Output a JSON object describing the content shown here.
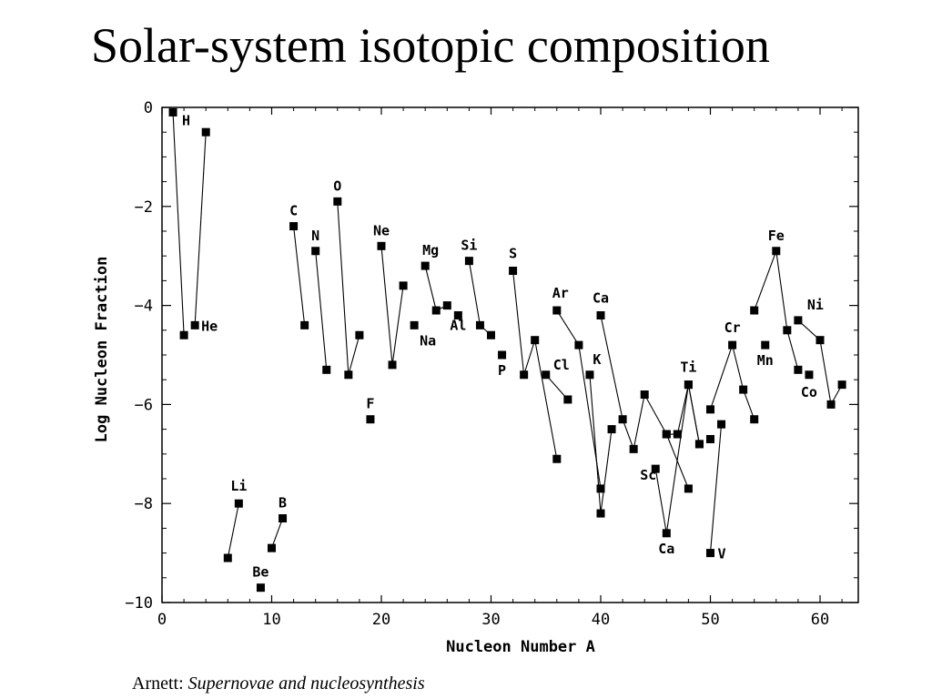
{
  "slide": {
    "title": "Solar-system isotopic composition",
    "caption_prefix": "Arnett: ",
    "caption_italic": "Supernovae and nucleosynthesis"
  },
  "chart_data": {
    "type": "scatter",
    "xlabel": "Nucleon Number A",
    "ylabel": "Log Nucleon Fraction",
    "xlim": [
      0,
      64
    ],
    "ylim": [
      -10,
      0
    ],
    "x_ticks": [
      0,
      10,
      20,
      30,
      40,
      50,
      60
    ],
    "y_ticks": [
      0,
      -2,
      -4,
      -6,
      -8,
      -10
    ],
    "x_tick_labels": [
      "0",
      "10",
      "20",
      "30",
      "40",
      "50",
      "60"
    ],
    "y_tick_labels": [
      "0",
      "−2",
      "−4",
      "−6",
      "−8",
      "−10"
    ],
    "grid": false,
    "marker": "square",
    "series": [
      {
        "points": [
          [
            1,
            -0.1
          ],
          [
            2,
            -4.6
          ]
        ]
      },
      {
        "points": [
          [
            3,
            -4.4
          ],
          [
            4,
            -0.5
          ]
        ]
      },
      {
        "points": [
          [
            6,
            -9.1
          ],
          [
            7,
            -8.0
          ]
        ]
      },
      {
        "points": [
          [
            9,
            -9.7
          ]
        ]
      },
      {
        "points": [
          [
            10,
            -8.9
          ],
          [
            11,
            -8.3
          ]
        ]
      },
      {
        "points": [
          [
            12,
            -2.4
          ],
          [
            13,
            -4.4
          ]
        ]
      },
      {
        "points": [
          [
            14,
            -2.9
          ],
          [
            15,
            -5.3
          ]
        ]
      },
      {
        "points": [
          [
            16,
            -1.9
          ],
          [
            17,
            -5.4
          ],
          [
            18,
            -4.6
          ]
        ]
      },
      {
        "points": [
          [
            19,
            -6.3
          ]
        ]
      },
      {
        "points": [
          [
            20,
            -2.8
          ],
          [
            21,
            -5.2
          ],
          [
            22,
            -3.6
          ]
        ]
      },
      {
        "points": [
          [
            23,
            -4.4
          ]
        ]
      },
      {
        "points": [
          [
            24,
            -3.2
          ],
          [
            25,
            -4.1
          ],
          [
            26,
            -4.0
          ]
        ]
      },
      {
        "points": [
          [
            27,
            -4.2
          ]
        ]
      },
      {
        "points": [
          [
            28,
            -3.1
          ],
          [
            29,
            -4.4
          ],
          [
            30,
            -4.6
          ]
        ]
      },
      {
        "points": [
          [
            31,
            -5.0
          ]
        ]
      },
      {
        "points": [
          [
            32,
            -3.3
          ],
          [
            33,
            -5.4
          ],
          [
            34,
            -4.7
          ],
          [
            36,
            -7.1
          ]
        ]
      },
      {
        "points": [
          [
            35,
            -5.4
          ],
          [
            37,
            -5.9
          ]
        ]
      },
      {
        "points": [
          [
            36,
            -4.1
          ],
          [
            38,
            -4.8
          ],
          [
            40,
            -7.7
          ]
        ]
      },
      {
        "points": [
          [
            39,
            -5.4
          ],
          [
            40,
            -8.2
          ],
          [
            41,
            -6.5
          ]
        ]
      },
      {
        "points": [
          [
            40,
            -4.2
          ],
          [
            42,
            -6.3
          ],
          [
            43,
            -6.9
          ],
          [
            44,
            -5.8
          ],
          [
            46,
            -6.6
          ],
          [
            48,
            -7.7
          ]
        ]
      },
      {
        "points": [
          [
            45,
            -7.3
          ],
          [
            46,
            -8.6
          ],
          [
            48,
            -5.6
          ],
          [
            49,
            -6.8
          ]
        ]
      },
      {
        "points": [
          [
            46,
            -6.6
          ],
          [
            47,
            -6.6
          ],
          [
            48,
            -5.6
          ],
          [
            49,
            -6.8
          ]
        ]
      },
      {
        "points": [
          [
            50,
            -9.0
          ],
          [
            51,
            -6.4
          ]
        ]
      },
      {
        "points": [
          [
            50,
            -6.1
          ],
          [
            52,
            -4.8
          ],
          [
            53,
            -5.7
          ],
          [
            54,
            -6.3
          ]
        ]
      },
      {
        "points": [
          [
            50,
            -6.7
          ]
        ]
      },
      {
        "points": [
          [
            54,
            -4.1
          ],
          [
            56,
            -2.9
          ],
          [
            57,
            -4.5
          ],
          [
            58,
            -5.3
          ]
        ]
      },
      {
        "points": [
          [
            55,
            -4.8
          ]
        ]
      },
      {
        "points": [
          [
            58,
            -4.3
          ],
          [
            60,
            -4.7
          ],
          [
            61,
            -6.0
          ],
          [
            62,
            -5.6
          ]
        ]
      },
      {
        "points": [
          [
            59,
            -5.4
          ]
        ]
      }
    ],
    "labels": [
      {
        "text": "H",
        "x": 1,
        "y": -0.1
      },
      {
        "text": "He",
        "x": 3,
        "y": -4.4
      },
      {
        "text": "Li",
        "x": 7,
        "y": -8.0
      },
      {
        "text": "Be",
        "x": 9,
        "y": -9.7
      },
      {
        "text": "B",
        "x": 11,
        "y": -8.3
      },
      {
        "text": "C",
        "x": 12,
        "y": -2.4
      },
      {
        "text": "N",
        "x": 14,
        "y": -2.9
      },
      {
        "text": "O",
        "x": 16,
        "y": -1.9
      },
      {
        "text": "F",
        "x": 19,
        "y": -6.3
      },
      {
        "text": "Ne",
        "x": 20,
        "y": -2.8
      },
      {
        "text": "Na",
        "x": 23,
        "y": -4.4
      },
      {
        "text": "Mg",
        "x": 24,
        "y": -3.2
      },
      {
        "text": "Al",
        "x": 27,
        "y": -4.2
      },
      {
        "text": "Si",
        "x": 28,
        "y": -3.1
      },
      {
        "text": "P",
        "x": 31,
        "y": -5.0
      },
      {
        "text": "S",
        "x": 32,
        "y": -3.3
      },
      {
        "text": "Cl",
        "x": 35,
        "y": -5.4
      },
      {
        "text": "Ar",
        "x": 36,
        "y": -4.1
      },
      {
        "text": "K",
        "x": 39,
        "y": -5.4
      },
      {
        "text": "Ca",
        "x": 40,
        "y": -4.2
      },
      {
        "text": "Sc",
        "x": 45,
        "y": -7.3
      },
      {
        "text": "Ca",
        "x": 46,
        "y": -8.6
      },
      {
        "text": "Ti",
        "x": 48,
        "y": -5.6
      },
      {
        "text": "V",
        "x": 50,
        "y": -9.0
      },
      {
        "text": "Cr",
        "x": 52,
        "y": -4.8
      },
      {
        "text": "Mn",
        "x": 55,
        "y": -4.8
      },
      {
        "text": "Fe",
        "x": 56,
        "y": -2.9
      },
      {
        "text": "Co",
        "x": 59,
        "y": -5.4
      },
      {
        "text": "Ni",
        "x": 58,
        "y": -4.3
      }
    ]
  }
}
